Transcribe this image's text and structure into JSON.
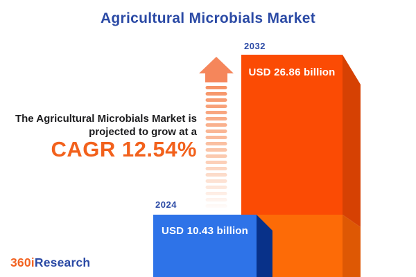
{
  "title": "Agricultural Microbials Market",
  "tagline": {
    "line1": "The Agricultural Microbials Market is",
    "line2": "projected to grow at a",
    "cagr": "CAGR 12.54%"
  },
  "chart_data": {
    "type": "bar",
    "title": "Agricultural Microbials Market",
    "categories": [
      "2024",
      "2032"
    ],
    "values": [
      10.43,
      26.86
    ],
    "unit": "USD billion",
    "value_labels": [
      "USD 10.43 billion",
      "USD 26.86 billion"
    ],
    "cagr_percent": 12.54,
    "grid": false,
    "legend_position": "none",
    "style": "3d-infographic-bars-with-growth-arrow"
  },
  "logo": {
    "prefix": "360i",
    "suffix": "Research"
  },
  "colors": {
    "heading_blue": "#2B4AA5",
    "accent_orange": "#F2611C",
    "text_dark": "#1C1C1E",
    "bar2032_front": "#FB4B04",
    "bar2032_side": "#D64103",
    "base_front": "#FD6B07",
    "base_side": "#DE5804",
    "bar2024_front": "#2E73E8",
    "bar2024_side": "#083189",
    "arrow_head": "#F5865B",
    "logo_orange": "#F26322",
    "logo_blue": "#2B4AA5"
  }
}
